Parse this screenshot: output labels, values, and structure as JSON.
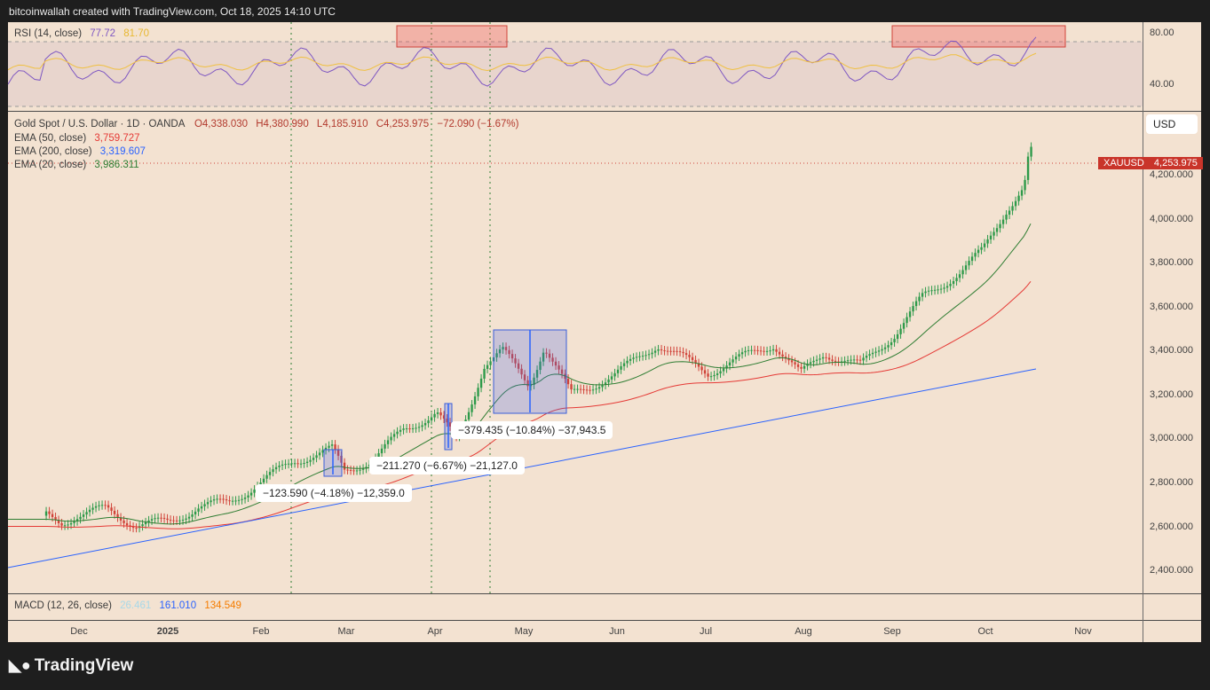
{
  "header": {
    "text": "bitcoinwallah created with TradingView.com, Oct 18, 2025 14:10 UTC"
  },
  "rsi": {
    "name": "RSI (14, close)",
    "value": "77.72",
    "ma_value": "81.70",
    "ticks": [
      "80.00",
      "40.00"
    ],
    "line_color": "#7e57c2",
    "ma_color": "#f0c040"
  },
  "main": {
    "title": "Gold Spot / U.S. Dollar · 1D · OANDA",
    "ohlc": {
      "o": "O4,338.030",
      "h": "H4,380.990",
      "l": "L4,185.910",
      "c": "C4,253.975",
      "chg": "−72.090 (−1.67%)"
    },
    "ema50": {
      "label": "EMA (50, close)",
      "value": "3,759.727",
      "color": "#e53935"
    },
    "ema200": {
      "label": "EMA (200, close)",
      "value": "3,319.607",
      "color": "#2962ff"
    },
    "ema20": {
      "label": "EMA (20, close)",
      "value": "3,986.311",
      "color": "#2e7d32"
    },
    "currency": "USD",
    "price_tag": {
      "symbol": "XAUUSD",
      "value": "4,253.975"
    }
  },
  "macd": {
    "name": "MACD (12, 26, close)",
    "v1": "26.461",
    "v2": "161.010",
    "v3": "134.549"
  },
  "annotations": [
    {
      "text": "−123.590 (−4.18%) −12,359.0"
    },
    {
      "text": "−211.270 (−6.67%) −21,127.0"
    },
    {
      "text": "−379.435 (−10.84%) −37,943.5"
    }
  ],
  "footer": {
    "brand": "TradingView"
  },
  "chart_data": {
    "type": "candlestick",
    "symbol": "XAUUSD",
    "ylim": [
      2300,
      4400
    ],
    "y_ticks": [
      "4,200.000",
      "4,000.000",
      "3,800.000",
      "3,600.000",
      "3,400.000",
      "3,200.000",
      "3,000.000",
      "2,800.000",
      "2,600.000",
      "2,400.000"
    ],
    "x_ticks": [
      "Dec",
      "2025",
      "Feb",
      "Mar",
      "Apr",
      "May",
      "Jun",
      "Jul",
      "Aug",
      "Sep",
      "Oct",
      "Nov"
    ],
    "close_series": [
      {
        "date": "2024-11-20",
        "close": 2650
      },
      {
        "date": "2024-11-25",
        "close": 2620
      },
      {
        "date": "2024-11-30",
        "close": 2650
      },
      {
        "date": "2024-12-10",
        "close": 2680
      },
      {
        "date": "2024-12-20",
        "close": 2610
      },
      {
        "date": "2024-12-31",
        "close": 2620
      },
      {
        "date": "2025-01-10",
        "close": 2690
      },
      {
        "date": "2025-01-20",
        "close": 2710
      },
      {
        "date": "2025-01-31",
        "close": 2800
      },
      {
        "date": "2025-02-11",
        "close": 2900
      },
      {
        "date": "2025-02-24",
        "close": 2950
      },
      {
        "date": "2025-02-28",
        "close": 2850
      },
      {
        "date": "2025-03-10",
        "close": 2910
      },
      {
        "date": "2025-03-20",
        "close": 3040
      },
      {
        "date": "2025-03-31",
        "close": 3120
      },
      {
        "date": "2025-04-07",
        "close": 2980
      },
      {
        "date": "2025-04-16",
        "close": 3340
      },
      {
        "date": "2025-04-22",
        "close": 3400
      },
      {
        "date": "2025-05-01",
        "close": 3240
      },
      {
        "date": "2025-05-06",
        "close": 3420
      },
      {
        "date": "2025-05-15",
        "close": 3200
      },
      {
        "date": "2025-05-30",
        "close": 3290
      },
      {
        "date": "2025-06-13",
        "close": 3430
      },
      {
        "date": "2025-06-30",
        "close": 3300
      },
      {
        "date": "2025-07-22",
        "close": 3430
      },
      {
        "date": "2025-07-31",
        "close": 3290
      },
      {
        "date": "2025-08-08",
        "close": 3390
      },
      {
        "date": "2025-08-20",
        "close": 3330
      },
      {
        "date": "2025-09-01",
        "close": 3480
      },
      {
        "date": "2025-09-10",
        "close": 3640
      },
      {
        "date": "2025-09-23",
        "close": 3760
      },
      {
        "date": "2025-09-30",
        "close": 3850
      },
      {
        "date": "2025-10-08",
        "close": 4040
      },
      {
        "date": "2025-10-14",
        "close": 4140
      },
      {
        "date": "2025-10-16",
        "close": 4330
      },
      {
        "date": "2025-10-17",
        "close": 4253.975
      }
    ]
  }
}
